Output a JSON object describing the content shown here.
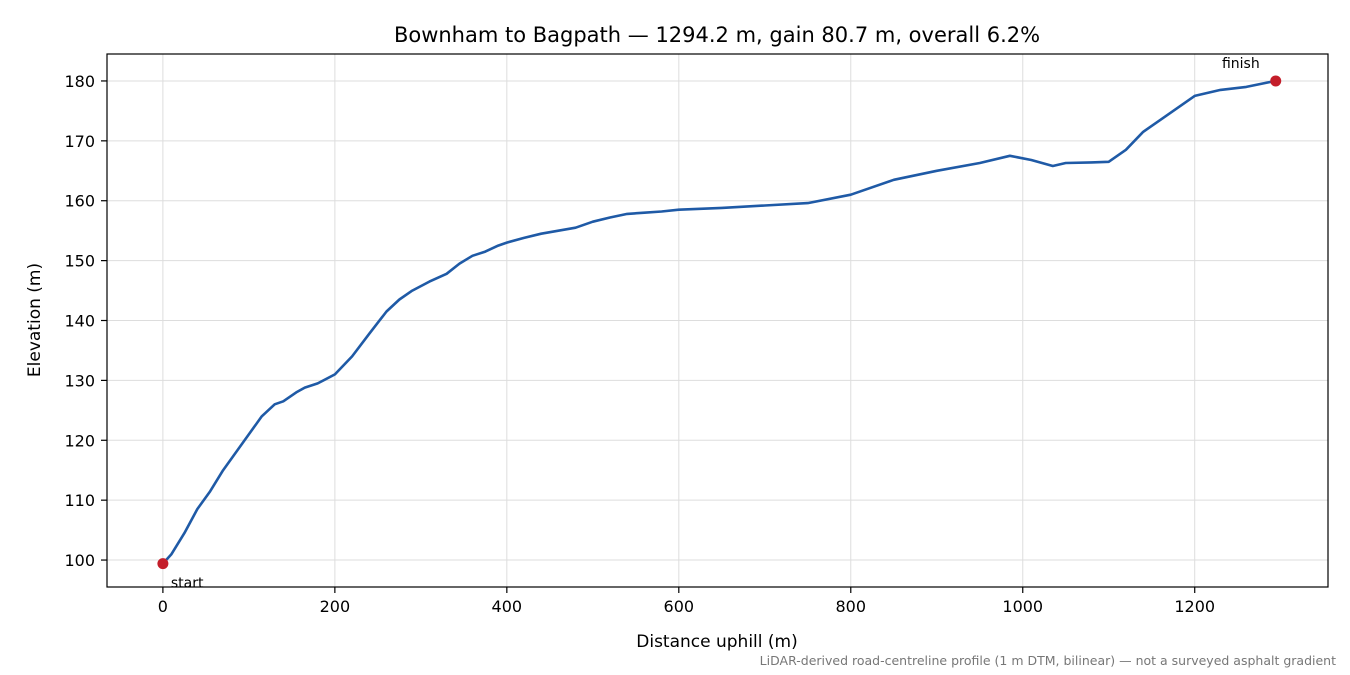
{
  "chart_data": {
    "type": "line",
    "title": "Bownham to Bagpath — 1294.2 m, gain 80.7 m, overall 6.2%",
    "xlabel": "Distance uphill (m)",
    "ylabel": "Elevation (m)",
    "xlim": [
      -65,
      1355
    ],
    "ylim": [
      95.5,
      184.5
    ],
    "xticks": [
      0,
      200,
      400,
      600,
      800,
      1000,
      1200
    ],
    "yticks": [
      100,
      110,
      120,
      130,
      140,
      150,
      160,
      170,
      180
    ],
    "grid": true,
    "footnote": "LiDAR-derived road-centreline profile (1 m DTM, bilinear) — not a surveyed asphalt gradient",
    "colors": {
      "line": "#1f5aa6",
      "marker": "#c41e2a",
      "grid": "#dddddd"
    },
    "series": [
      {
        "x": [
          0,
          10,
          25,
          40,
          55,
          70,
          85,
          100,
          115,
          130,
          140,
          155,
          165,
          180,
          200,
          220,
          240,
          260,
          275,
          290,
          310,
          330,
          345,
          360,
          375,
          390,
          400,
          420,
          440,
          460,
          480,
          500,
          520,
          540,
          560,
          580,
          600,
          650,
          700,
          750,
          800,
          850,
          900,
          950,
          985,
          1010,
          1035,
          1050,
          1080,
          1100,
          1120,
          1140,
          1160,
          1180,
          1200,
          1230,
          1260,
          1294.2
        ],
        "y": [
          99.4,
          101,
          104.5,
          108.5,
          111.5,
          115,
          118,
          121,
          124,
          126,
          126.5,
          128,
          128.8,
          129.5,
          131,
          134,
          137.8,
          141.5,
          143.5,
          145,
          146.5,
          147.8,
          149.5,
          150.8,
          151.5,
          152.5,
          153,
          153.8,
          154.5,
          155,
          155.5,
          156.5,
          157.2,
          157.8,
          158,
          158.2,
          158.5,
          158.8,
          159.2,
          159.6,
          161,
          163.5,
          165,
          166.3,
          167.5,
          166.8,
          165.8,
          166.3,
          166.4,
          166.5,
          168.5,
          171.5,
          173.5,
          175.5,
          177.5,
          178.5,
          179,
          180
        ]
      }
    ],
    "annotations": [
      {
        "text": "start",
        "x": 0,
        "y": 99.4
      },
      {
        "text": "finish",
        "x": 1294.2,
        "y": 180
      }
    ]
  }
}
